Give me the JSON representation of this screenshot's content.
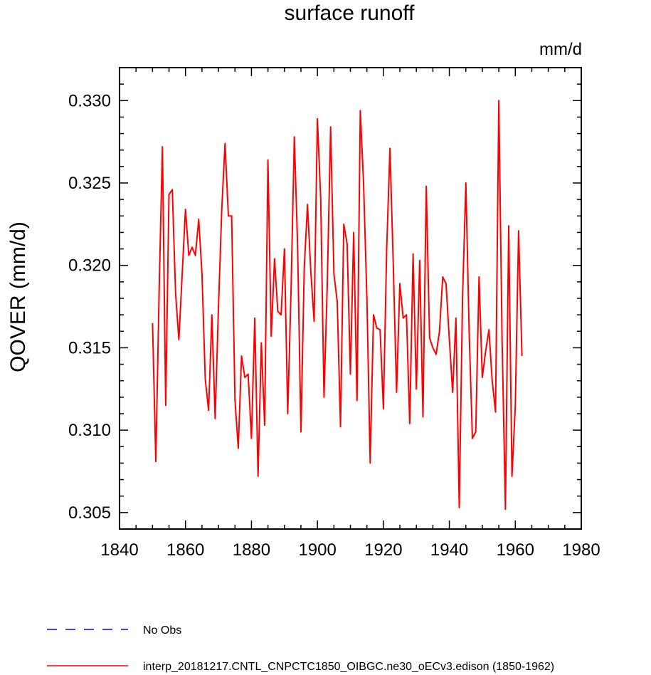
{
  "chart_data": {
    "type": "line",
    "title": "surface runoff",
    "units_label": "mm/d",
    "ylabel": "QOVER  (mm/d)",
    "xlabel": "",
    "xlim": [
      1840,
      1980
    ],
    "ylim": [
      0.304,
      0.332
    ],
    "x_ticks": [
      1840,
      1860,
      1880,
      1900,
      1920,
      1940,
      1960,
      1980
    ],
    "x_tick_labels": [
      "1840",
      "1860",
      "1880",
      "1900",
      "1920",
      "1940",
      "1960",
      "1980"
    ],
    "y_ticks": [
      0.305,
      0.31,
      0.315,
      0.32,
      0.325,
      0.33
    ],
    "y_tick_labels": [
      "0.305",
      "0.310",
      "0.315",
      "0.320",
      "0.325",
      "0.330"
    ],
    "grid": false,
    "legend_position": "bottom",
    "series": [
      {
        "name": "No Obs",
        "color": "#0000ff",
        "style": "dashed",
        "x": [],
        "values": []
      },
      {
        "name": "interp_20181217.CNTL_CNPCTC1850_OIBGC.ne30_oECv3.edison (1850-1962)",
        "color": "#ff0000",
        "style": "solid",
        "x": [
          1850,
          1851,
          1852,
          1853,
          1854,
          1855,
          1856,
          1857,
          1858,
          1859,
          1860,
          1861,
          1862,
          1863,
          1864,
          1865,
          1866,
          1867,
          1868,
          1869,
          1870,
          1871,
          1872,
          1873,
          1874,
          1875,
          1876,
          1877,
          1878,
          1879,
          1880,
          1881,
          1882,
          1883,
          1884,
          1885,
          1886,
          1887,
          1888,
          1889,
          1890,
          1891,
          1892,
          1893,
          1894,
          1895,
          1896,
          1897,
          1898,
          1899,
          1900,
          1901,
          1902,
          1903,
          1904,
          1905,
          1906,
          1907,
          1908,
          1909,
          1910,
          1911,
          1912,
          1913,
          1914,
          1915,
          1916,
          1917,
          1918,
          1919,
          1920,
          1921,
          1922,
          1923,
          1924,
          1925,
          1926,
          1927,
          1928,
          1929,
          1930,
          1931,
          1932,
          1933,
          1934,
          1935,
          1936,
          1937,
          1938,
          1939,
          1940,
          1941,
          1942,
          1943,
          1944,
          1945,
          1946,
          1947,
          1948,
          1949,
          1950,
          1951,
          1952,
          1953,
          1954,
          1955,
          1956,
          1957,
          1958,
          1959,
          1960,
          1961,
          1962
        ],
        "values": [
          0.3165,
          0.3081,
          0.3183,
          0.3272,
          0.3115,
          0.3243,
          0.3246,
          0.3183,
          0.3155,
          0.3195,
          0.3234,
          0.3206,
          0.3211,
          0.3206,
          0.3228,
          0.3195,
          0.3131,
          0.3112,
          0.317,
          0.3107,
          0.3175,
          0.3234,
          0.3274,
          0.323,
          0.323,
          0.3118,
          0.3089,
          0.3145,
          0.3132,
          0.3134,
          0.3095,
          0.3168,
          0.3072,
          0.3153,
          0.3103,
          0.3264,
          0.3157,
          0.3204,
          0.3172,
          0.317,
          0.321,
          0.311,
          0.3185,
          0.3278,
          0.3212,
          0.3099,
          0.3198,
          0.3237,
          0.3196,
          0.3166,
          0.3289,
          0.324,
          0.312,
          0.319,
          0.3284,
          0.3195,
          0.3178,
          0.3102,
          0.3225,
          0.3213,
          0.3134,
          0.322,
          0.3118,
          0.3294,
          0.325,
          0.318,
          0.308,
          0.317,
          0.3162,
          0.3161,
          0.3113,
          0.321,
          0.3271,
          0.32,
          0.3123,
          0.3189,
          0.3168,
          0.317,
          0.3104,
          0.3207,
          0.3125,
          0.3203,
          0.3108,
          0.3248,
          0.3156,
          0.315,
          0.3146,
          0.316,
          0.3193,
          0.3189,
          0.3155,
          0.3123,
          0.3168,
          0.3053,
          0.318,
          0.325,
          0.316,
          0.3095,
          0.3099,
          0.3193,
          0.3132,
          0.3148,
          0.3161,
          0.313,
          0.3111,
          0.33,
          0.3155,
          0.3052,
          0.3224,
          0.3072,
          0.3115,
          0.3221,
          0.3145
        ]
      }
    ]
  }
}
